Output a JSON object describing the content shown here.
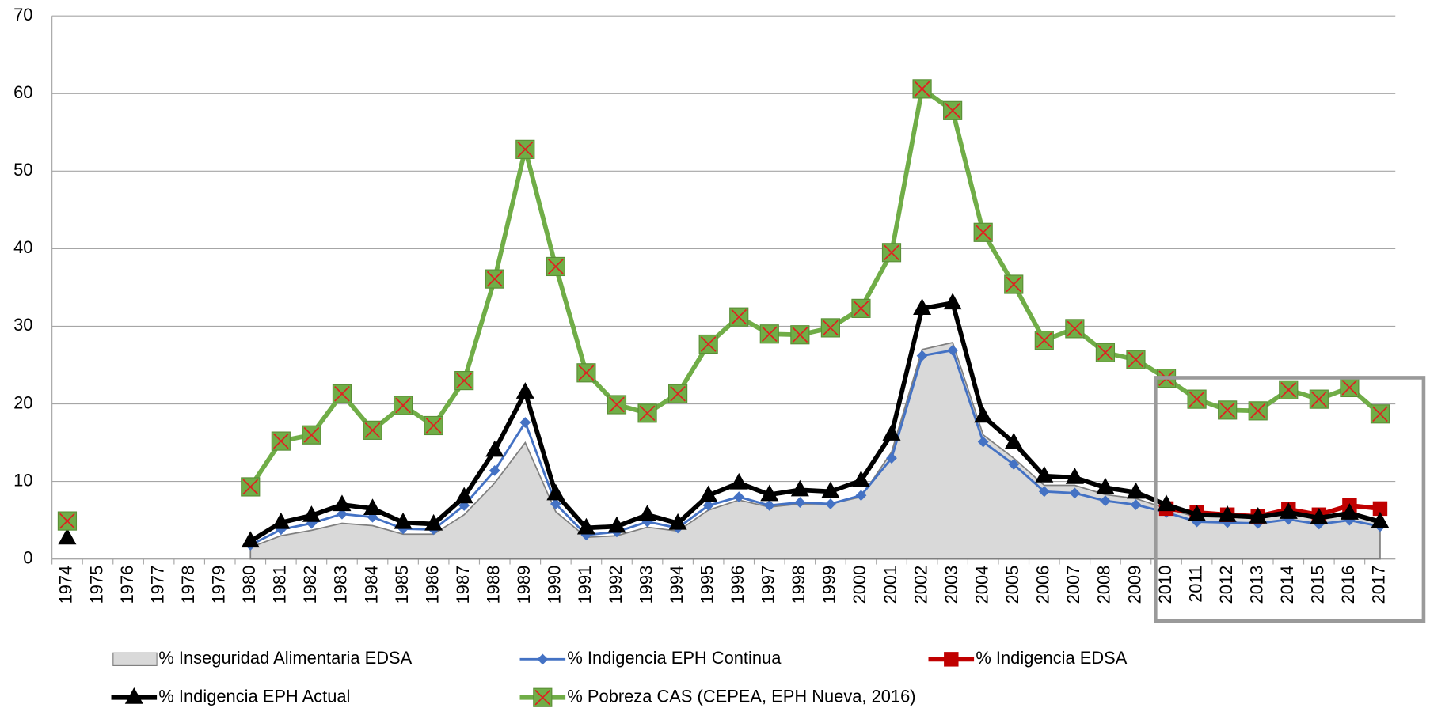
{
  "chart_data": {
    "type": "line",
    "categories": [
      "1974",
      "1975",
      "1976",
      "1977",
      "1978",
      "1979",
      "1980",
      "1981",
      "1982",
      "1983",
      "1984",
      "1985",
      "1986",
      "1987",
      "1988",
      "1989",
      "1990",
      "1991",
      "1992",
      "1993",
      "1994",
      "1995",
      "1996",
      "1997",
      "1998",
      "1999",
      "2000",
      "2001",
      "2002",
      "2003",
      "2004",
      "2005",
      "2006",
      "2007",
      "2008",
      "2009",
      "2010",
      "2011",
      "2012",
      "2013",
      "2014",
      "2015",
      "2016",
      "2017"
    ],
    "ylim": [
      0,
      70
    ],
    "yticks": [
      0,
      10,
      20,
      30,
      40,
      50,
      60,
      70
    ],
    "grid": true,
    "series": [
      {
        "name": "% Inseguridad Alimentaria EDSA",
        "type": "area",
        "color": "#d9d9d9",
        "values": [
          null,
          null,
          null,
          null,
          null,
          null,
          1.5,
          3.0,
          3.7,
          4.6,
          4.3,
          3.2,
          3.2,
          5.7,
          9.8,
          15.0,
          6.1,
          2.8,
          3.0,
          4.1,
          3.6,
          6.3,
          7.6,
          6.7,
          7.1,
          7.1,
          8.0,
          13.8,
          27.0,
          27.9,
          16.0,
          13.0,
          9.5,
          9.5,
          8.3,
          7.8,
          6.5,
          5.4,
          5.6,
          5.7,
          6.2,
          5.0,
          5.8,
          4.5
        ]
      },
      {
        "name": "% Indigencia EPH Continua",
        "type": "line",
        "marker": "diamond",
        "color": "#4472c4",
        "values": [
          null,
          null,
          null,
          null,
          null,
          null,
          1.8,
          3.8,
          4.6,
          5.8,
          5.4,
          3.9,
          3.8,
          6.9,
          11.4,
          17.6,
          7.1,
          3.1,
          3.5,
          4.8,
          4.0,
          6.9,
          8.0,
          6.9,
          7.3,
          7.1,
          8.2,
          13.0,
          26.2,
          26.9,
          15.1,
          12.2,
          8.7,
          8.5,
          7.5,
          7.0,
          6.0,
          4.8,
          4.7,
          4.6,
          5.1,
          4.5,
          5.0,
          4.2
        ]
      },
      {
        "name": "% Indigencia EDSA",
        "type": "line",
        "marker": "square",
        "color": "#c00000",
        "values": [
          null,
          null,
          null,
          null,
          null,
          null,
          null,
          null,
          null,
          null,
          null,
          null,
          null,
          null,
          null,
          null,
          null,
          null,
          null,
          null,
          null,
          null,
          null,
          null,
          null,
          null,
          null,
          null,
          null,
          null,
          null,
          null,
          null,
          null,
          null,
          null,
          6.5,
          6.0,
          5.7,
          5.5,
          6.4,
          5.7,
          6.9,
          6.5
        ]
      },
      {
        "name": "% Indigencia EPH Actual",
        "type": "line",
        "marker": "triangle",
        "color": "#000000",
        "values": [
          2.7,
          null,
          null,
          null,
          null,
          null,
          2.3,
          4.7,
          5.6,
          7.0,
          6.5,
          4.7,
          4.5,
          8.0,
          14.0,
          21.5,
          8.4,
          4.0,
          4.2,
          5.7,
          4.6,
          8.2,
          9.8,
          8.3,
          8.9,
          8.7,
          10.1,
          16.1,
          32.3,
          33.0,
          18.4,
          15.0,
          10.7,
          10.5,
          9.2,
          8.6,
          7.0,
          5.7,
          5.6,
          5.4,
          6.0,
          5.3,
          5.9,
          4.8
        ]
      },
      {
        "name": "% Pobreza CAS (CEPEA, EPH Nueva, 2016)",
        "type": "line",
        "marker": "xsquare",
        "color": "#70ad47",
        "values": [
          4.9,
          null,
          null,
          null,
          null,
          null,
          9.3,
          15.2,
          16.0,
          21.3,
          16.6,
          19.8,
          17.2,
          23.0,
          36.1,
          52.8,
          37.7,
          24.0,
          19.9,
          18.8,
          21.3,
          27.7,
          31.2,
          29.0,
          28.9,
          29.8,
          32.3,
          39.5,
          60.6,
          57.8,
          42.1,
          35.4,
          28.2,
          29.7,
          26.6,
          25.7,
          23.3,
          20.6,
          19.2,
          19.1,
          21.8,
          20.6,
          22.1,
          18.7
        ]
      }
    ]
  }
}
